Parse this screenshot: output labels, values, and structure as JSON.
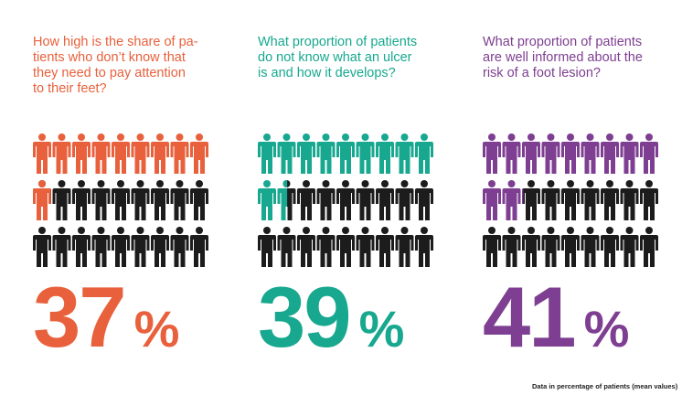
{
  "colors": {
    "filled_default": "#1c1c1c"
  },
  "chart_data": [
    {
      "type": "pictogram",
      "question": "How high is the share of pa-\ntients who don’t know that\nthey need to pay attention\nto their feet?",
      "value": 37,
      "value_text": "37",
      "unit": "%",
      "total_icons": 27,
      "highlight_icons": 9.99,
      "color": "#e8613c"
    },
    {
      "type": "pictogram",
      "question": "What proportion of patients\ndo not know what an ulcer\nis and how it develops?",
      "value": 39,
      "value_text": "39",
      "unit": "%",
      "total_icons": 27,
      "highlight_icons": 10.53,
      "color": "#17a88f"
    },
    {
      "type": "pictogram",
      "question": "What proportion of patients\nare well informed about the\nrisk of a foot lesion?",
      "value": 41,
      "value_text": "41",
      "unit": "%",
      "total_icons": 27,
      "highlight_icons": 11.07,
      "color": "#7e3e91"
    }
  ],
  "footnote": "Data in percentage of patients (mean values)"
}
